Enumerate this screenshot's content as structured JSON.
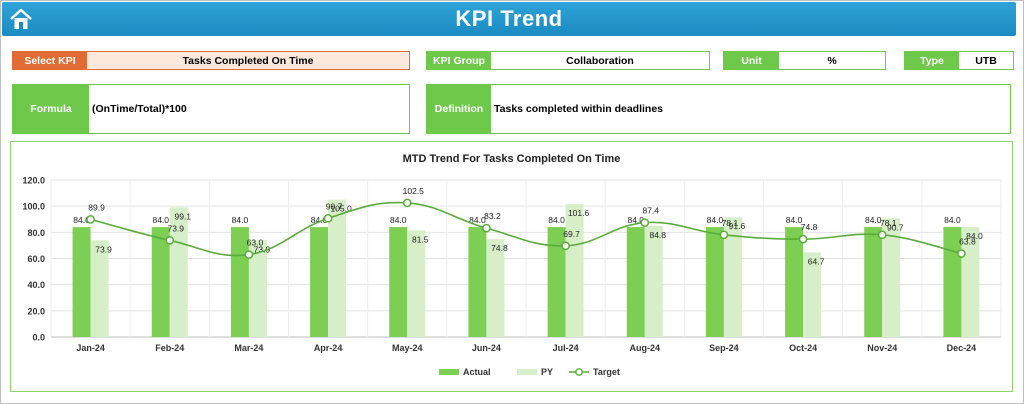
{
  "header": {
    "title": "KPI Trend",
    "home_icon": "home-icon"
  },
  "select_kpi": {
    "label": "Select KPI",
    "value": "Tasks Completed On Time"
  },
  "kpi_group": {
    "label": "KPI Group",
    "value": "Collaboration"
  },
  "unit": {
    "label": "Unit",
    "value": "%"
  },
  "type": {
    "label": "Type",
    "value": "UTB"
  },
  "formula": {
    "label": "Formula",
    "value": "(OnTime/Total)*100"
  },
  "definition": {
    "label": "Definition",
    "value": "Tasks completed within deadlines"
  },
  "colors": {
    "accent": "#6ec84a",
    "select": "#e06b35",
    "header": "#1b8bc2",
    "actual": "#7ccf52",
    "py": "#d6efc8",
    "target": "#5aac3a"
  },
  "chart_data": {
    "type": "bar",
    "title": "MTD Trend For Tasks Completed On Time",
    "categories": [
      "Jan-24",
      "Feb-24",
      "Mar-24",
      "Apr-24",
      "May-24",
      "Jun-24",
      "Jul-24",
      "Aug-24",
      "Sep-24",
      "Oct-24",
      "Nov-24",
      "Dec-24"
    ],
    "ylim": [
      0,
      120
    ],
    "yticks": [
      "0.0",
      "20.0",
      "40.0",
      "60.0",
      "80.0",
      "100.0",
      "120.0"
    ],
    "grid": true,
    "legend_position": "bottom",
    "series": [
      {
        "name": "Actual",
        "kind": "bar",
        "values": [
          84.0,
          84.0,
          84.0,
          84.0,
          84.0,
          84.0,
          84.0,
          84.0,
          84.0,
          84.0,
          84.0,
          84.0
        ],
        "labels": [
          "84.0",
          "84.0",
          "84.0",
          "84.0",
          "84.0",
          "84.0",
          "84.0",
          "84.0",
          "84.0",
          "84.0",
          "84.0",
          "84.0"
        ]
      },
      {
        "name": "PY",
        "kind": "bar",
        "values": [
          73.9,
          99.1,
          73.9,
          105.0,
          81.5,
          74.8,
          101.6,
          84.8,
          91.6,
          64.7,
          90.7,
          84.0
        ],
        "labels": [
          "73.9",
          "99.1",
          "73.9",
          "105.0",
          "81.5",
          "74.8",
          "101.6",
          "84.8",
          "91.6",
          "64.7",
          "90.7",
          "84.0"
        ]
      },
      {
        "name": "Target",
        "kind": "line",
        "values": [
          89.9,
          73.9,
          63.0,
          90.7,
          102.5,
          83.2,
          69.7,
          87.4,
          78.1,
          74.8,
          78.1,
          63.8
        ],
        "labels": [
          "89.9",
          "73.9",
          "63.0",
          "90.7",
          "102.5",
          "83.2",
          "69.7",
          "87.4",
          "78.1",
          "74.8",
          "78.1",
          "63.8"
        ]
      }
    ]
  }
}
